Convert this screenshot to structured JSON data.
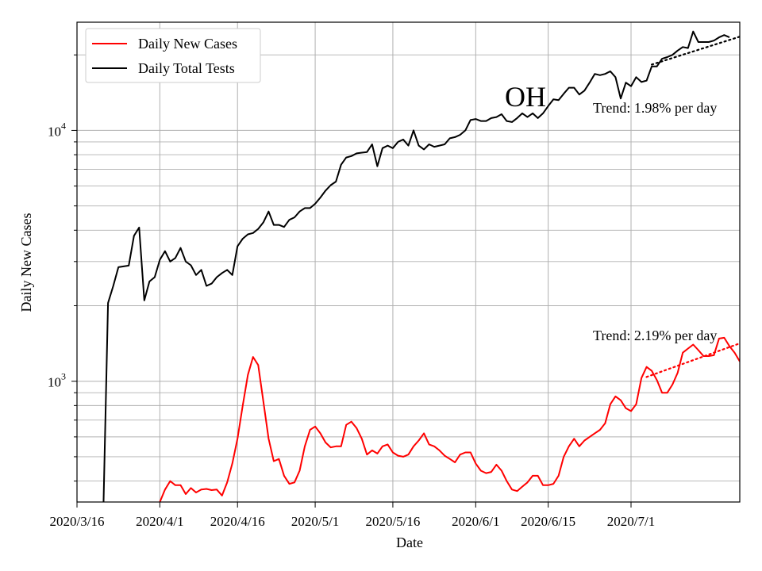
{
  "chart_data": {
    "type": "line",
    "title": "OH",
    "xlabel": "Date",
    "ylabel": "Daily New Cases",
    "yscale": "log",
    "ylim": [
      330,
      27000
    ],
    "x_tick_labels": [
      "2020/3/16",
      "2020/4/1",
      "2020/4/16",
      "2020/5/1",
      "2020/5/16",
      "2020/6/1",
      "2020/6/15",
      "2020/7/1"
    ],
    "x_tick_days": [
      0,
      16,
      31,
      46,
      61,
      77,
      91,
      107
    ],
    "y_tick_labels": [
      {
        "value": 1000,
        "base": "10",
        "exp": "3"
      },
      {
        "value": 10000,
        "base": "10",
        "exp": "4"
      }
    ],
    "grid": true,
    "legend_position": "upper-left",
    "legend": [
      {
        "label": "Daily New Cases",
        "color": "#ff0000"
      },
      {
        "label": "Daily Total Tests",
        "color": "#000000"
      }
    ],
    "series": [
      {
        "name": "Daily Total Tests",
        "color": "#000000",
        "start_day": 5,
        "values": [
          250,
          2050,
          2400,
          2850,
          2870,
          2890,
          3800,
          4100,
          2100,
          2500,
          2600,
          3050,
          3300,
          3000,
          3100,
          3400,
          3000,
          2900,
          2650,
          2780,
          2400,
          2450,
          2600,
          2700,
          2780,
          2650,
          3450,
          3700,
          3850,
          3900,
          4050,
          4300,
          4750,
          4200,
          4200,
          4120,
          4400,
          4500,
          4750,
          4900,
          4900,
          5100,
          5400,
          5750,
          6050,
          6250,
          7300,
          7800,
          7900,
          8100,
          8150,
          8200,
          8800,
          7200,
          8500,
          8700,
          8500,
          9000,
          9200,
          8700,
          10000,
          8700,
          8400,
          8800,
          8600,
          8700,
          8800,
          9300,
          9400,
          9600,
          10000,
          11000,
          11100,
          10900,
          10900,
          11200,
          11300,
          11600,
          10900,
          10800,
          11200,
          11700,
          11300,
          11700,
          11200,
          11700,
          12500,
          13300,
          13200,
          14000,
          14800,
          14800,
          13900,
          14400,
          15500,
          16800,
          16600,
          16800,
          17200,
          16300,
          13400,
          15500,
          15000,
          16300,
          15600,
          15800,
          18000,
          18000,
          19300,
          19600,
          20000,
          20800,
          21500,
          21300,
          24800,
          22500,
          22500,
          22500,
          22800,
          23500,
          24000,
          23500
        ]
      },
      {
        "name": "Daily New Cases",
        "color": "#ff0000",
        "start_day": 16,
        "values": [
          330,
          370,
          400,
          385,
          385,
          355,
          375,
          360,
          370,
          372,
          368,
          370,
          350,
          395,
          470,
          590,
          800,
          1060,
          1250,
          1160,
          830,
          590,
          480,
          490,
          420,
          390,
          395,
          440,
          550,
          640,
          660,
          620,
          570,
          545,
          550,
          550,
          670,
          690,
          650,
          590,
          510,
          530,
          515,
          550,
          560,
          520,
          505,
          500,
          510,
          550,
          580,
          620,
          560,
          550,
          530,
          505,
          490,
          475,
          510,
          520,
          520,
          470,
          440,
          430,
          435,
          465,
          440,
          400,
          370,
          365,
          380,
          395,
          420,
          420,
          385,
          385,
          390,
          420,
          500,
          550,
          590,
          550,
          580,
          600,
          620,
          640,
          680,
          810,
          870,
          840,
          780,
          760,
          810,
          1030,
          1140,
          1100,
          1010,
          900,
          900,
          970,
          1080,
          1300,
          1350,
          1400,
          1330,
          1260,
          1260,
          1270,
          1480,
          1490,
          1380,
          1300,
          1200
        ]
      }
    ],
    "trends": [
      {
        "series": "Daily Total Tests",
        "text": "Trend: 1.98% per day",
        "start_day": 111,
        "end_day": 129,
        "start_value": 18300,
        "end_value": 24000,
        "color": "#000000"
      },
      {
        "series": "Daily New Cases",
        "text": "Trend: 2.19% per day",
        "start_day": 110,
        "end_day": 129,
        "start_value": 1040,
        "end_value": 1440,
        "color": "#ff0000"
      }
    ]
  }
}
